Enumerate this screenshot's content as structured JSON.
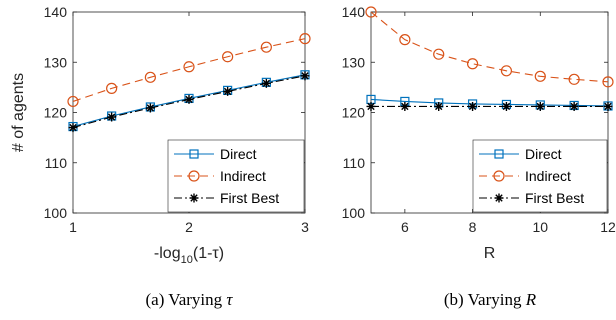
{
  "chart_data": [
    {
      "type": "line",
      "caption": "(a) Varying τ",
      "xlabel": "-log₁₀(1-τ)",
      "ylabel": "# of agents",
      "xlim": [
        1,
        3
      ],
      "ylim": [
        100,
        140
      ],
      "xticks": [
        1,
        2,
        3
      ],
      "yticks": [
        100,
        110,
        120,
        130,
        140
      ],
      "legend": {
        "placement": "bottom-right"
      },
      "series": [
        {
          "name": "Direct",
          "color": "#0072BD",
          "marker": "square",
          "dash": "solid",
          "x": [
            1,
            1.333,
            1.667,
            2,
            2.333,
            2.667,
            3
          ],
          "y": [
            117.2,
            119.3,
            121.1,
            122.8,
            124.4,
            126.0,
            127.5
          ]
        },
        {
          "name": "Indirect",
          "color": "#D95319",
          "marker": "circle",
          "dash": "dashed",
          "x": [
            1,
            1.333,
            1.667,
            2,
            2.333,
            2.667,
            3
          ],
          "y": [
            122.2,
            124.8,
            127.0,
            129.1,
            131.1,
            133.0,
            134.7
          ]
        },
        {
          "name": "First Best",
          "color": "#000000",
          "marker": "asterisk",
          "dash": "dashdot",
          "x": [
            1,
            1.333,
            1.667,
            2,
            2.333,
            2.667,
            3
          ],
          "y": [
            117.0,
            119.1,
            120.9,
            122.6,
            124.2,
            125.8,
            127.3
          ]
        }
      ]
    },
    {
      "type": "line",
      "caption": "(b) Varying R",
      "xlabel": "R",
      "ylabel": "",
      "xlim": [
        5,
        12
      ],
      "ylim": [
        100,
        140
      ],
      "xticks": [
        6,
        8,
        10,
        12
      ],
      "yticks": [
        100,
        110,
        120,
        130,
        140
      ],
      "legend": {
        "placement": "bottom-right"
      },
      "series": [
        {
          "name": "Direct",
          "color": "#0072BD",
          "marker": "square",
          "dash": "solid",
          "x": [
            5,
            6,
            7,
            8,
            9,
            10,
            11,
            12
          ],
          "y": [
            122.6,
            122.2,
            121.9,
            121.7,
            121.6,
            121.5,
            121.4,
            121.3
          ]
        },
        {
          "name": "Indirect",
          "color": "#D95319",
          "marker": "circle",
          "dash": "dashed",
          "x": [
            5,
            6,
            7,
            8,
            9,
            10,
            11,
            12
          ],
          "y": [
            140.0,
            134.5,
            131.6,
            129.7,
            128.3,
            127.2,
            126.6,
            126.1
          ]
        },
        {
          "name": "First Best",
          "color": "#000000",
          "marker": "asterisk",
          "dash": "dashdot",
          "x": [
            5,
            6,
            7,
            8,
            9,
            10,
            11,
            12
          ],
          "y": [
            121.2,
            121.2,
            121.2,
            121.2,
            121.2,
            121.2,
            121.2,
            121.2
          ]
        }
      ]
    }
  ]
}
